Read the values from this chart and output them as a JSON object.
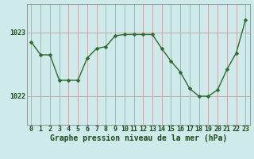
{
  "hours": [
    0,
    1,
    2,
    3,
    4,
    5,
    6,
    7,
    8,
    9,
    10,
    11,
    12,
    13,
    14,
    15,
    16,
    17,
    18,
    19,
    20,
    21,
    22,
    23
  ],
  "pressure": [
    1022.85,
    1022.65,
    1022.65,
    1022.25,
    1022.25,
    1022.25,
    1022.6,
    1022.75,
    1022.78,
    1022.95,
    1022.97,
    1022.97,
    1022.97,
    1022.97,
    1022.75,
    1022.55,
    1022.38,
    1022.12,
    1022.0,
    1022.0,
    1022.1,
    1022.42,
    1022.68,
    1023.2
  ],
  "line_color": "#2d6a2d",
  "marker": "D",
  "marker_size": 2.5,
  "background_color": "#ceeaea",
  "vgrid_color": "#c8a8a8",
  "hgrid_color": "#c8a8a8",
  "xlabel": "Graphe pression niveau de la mer (hPa)",
  "xlabel_color": "#1a4a1a",
  "tick_color": "#1a4a1a",
  "ytick_labels": [
    "1022",
    "1023"
  ],
  "ytick_values": [
    1022,
    1023
  ],
  "ylim": [
    1021.55,
    1023.45
  ],
  "xlim": [
    -0.5,
    23.5
  ],
  "xtick_labels": [
    "0",
    "1",
    "2",
    "3",
    "4",
    "5",
    "6",
    "7",
    "8",
    "9",
    "10",
    "11",
    "12",
    "13",
    "14",
    "15",
    "16",
    "17",
    "18",
    "19",
    "20",
    "21",
    "22",
    "23"
  ],
  "line_width": 1.0,
  "spine_color": "#888888",
  "label_fontsize": 6.0,
  "xlabel_fontsize": 7.0
}
